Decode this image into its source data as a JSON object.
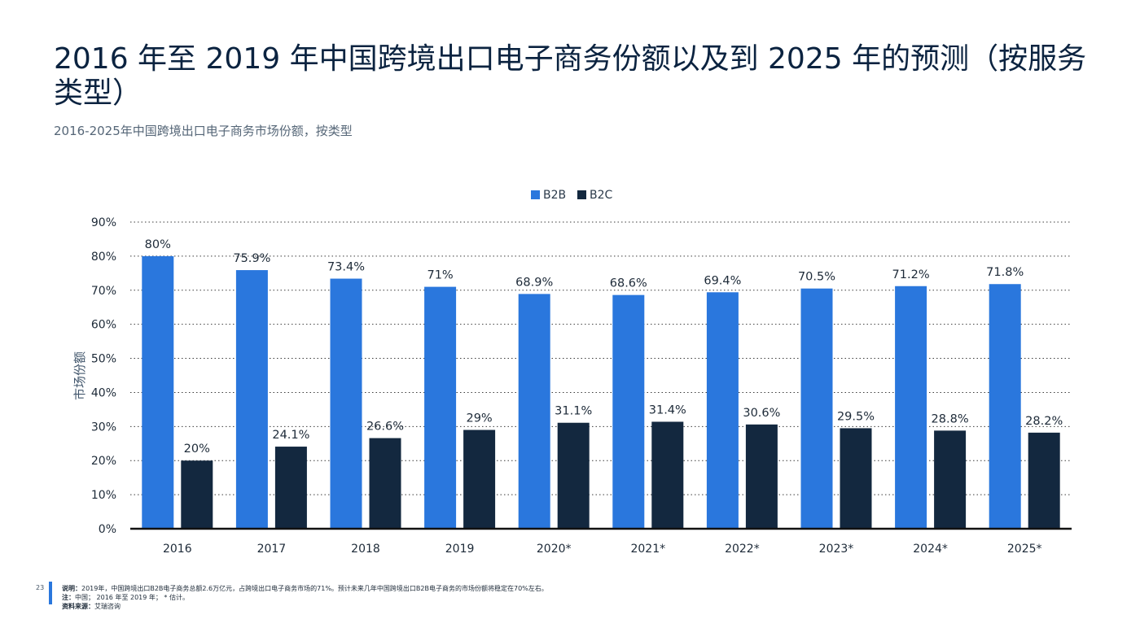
{
  "header": {
    "title": "2016 年至 2019 年中国跨境出口电子商务份额以及到 2025 年的预测（按服务类型）",
    "subtitle": "2016-2025年中国跨境出口电子商务市场份额，按类型"
  },
  "colors": {
    "b2b": "#2a77dd",
    "b2c": "#13283f"
  },
  "chart_data": {
    "type": "bar",
    "categories": [
      "2016",
      "2017",
      "2018",
      "2019",
      "2020*",
      "2021*",
      "2022*",
      "2023*",
      "2024*",
      "2025*"
    ],
    "series": [
      {
        "name": "B2B",
        "values": [
          80,
          75.9,
          73.4,
          71,
          68.9,
          68.6,
          69.4,
          70.5,
          71.2,
          71.8
        ],
        "labels": [
          "80%",
          "75.9%",
          "73.4%",
          "71%",
          "68.9%",
          "68.6%",
          "69.4%",
          "70.5%",
          "71.2%",
          "71.8%"
        ]
      },
      {
        "name": "B2C",
        "values": [
          20,
          24.1,
          26.6,
          29,
          31.1,
          31.4,
          30.6,
          29.5,
          28.8,
          28.2
        ],
        "labels": [
          "20%",
          "24.1%",
          "26.6%",
          "29%",
          "31.1%",
          "31.4%",
          "30.6%",
          "29.5%",
          "28.8%",
          "28.2%"
        ]
      }
    ],
    "ylabel": "市场份额",
    "ylim": [
      0,
      90
    ],
    "yticks": [
      "0%",
      "10%",
      "20%",
      "30%",
      "40%",
      "50%",
      "60%",
      "70%",
      "80%",
      "90%"
    ],
    "grid": true,
    "legend_position": "top-center"
  },
  "footer": {
    "page_number": "23",
    "note_label": "说明：",
    "note_text": "2019年，中国跨境出口B2B电子商务总额2.6万亿元，占跨境出口电子商务市场的71%。预计未来几年中国跨境出口B2B电子商务的市场份额将稳定在70%左右。",
    "annot_label": "注：",
    "annot_text": "中国； 2016 年至 2019 年； * 估计。",
    "source_label": "资料来源：",
    "source_text": "艾瑞咨询"
  }
}
